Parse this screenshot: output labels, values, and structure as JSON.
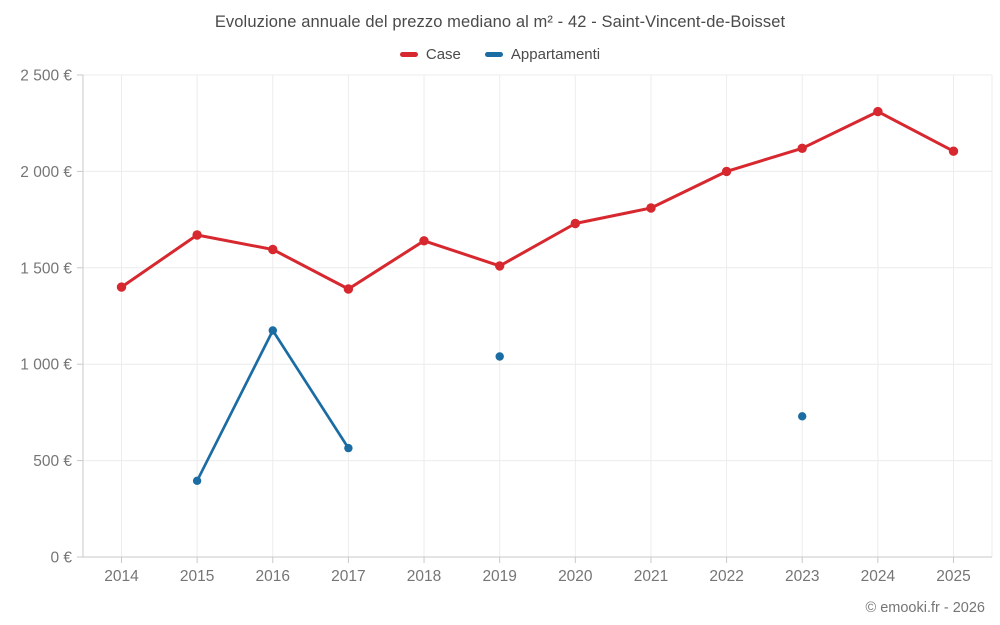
{
  "chart_data": {
    "type": "line",
    "title": "Evoluzione annuale del prezzo mediano al m² - 42 - Saint-Vincent-de-Boisset",
    "categories": [
      "2014",
      "2015",
      "2016",
      "2017",
      "2018",
      "2019",
      "2020",
      "2021",
      "2022",
      "2023",
      "2024",
      "2025"
    ],
    "series": [
      {
        "name": "Case",
        "color": "#d7282f",
        "values": [
          1400,
          1670,
          1595,
          1390,
          1640,
          1510,
          1730,
          1810,
          2000,
          2120,
          2310,
          2105
        ]
      },
      {
        "name": "Appartamenti",
        "color": "#1a6ca3",
        "values": [
          null,
          395,
          1175,
          565,
          null,
          1040,
          null,
          null,
          null,
          730,
          null,
          null
        ]
      }
    ],
    "ylim": [
      0,
      2500
    ],
    "ytick_step": 500,
    "ytick_labels": [
      "0 €",
      "500 €",
      "1 000 €",
      "1 500 €",
      "2 000 €",
      "2 500 €"
    ],
    "grid": true,
    "legend_position": "top",
    "colors": {
      "grid": "#ececec",
      "axis": "#c9c9c9",
      "tick_text": "#757575",
      "title_text": "#4a4a4a"
    }
  },
  "footer": {
    "copyright": "© emooki.fr - 2026"
  }
}
